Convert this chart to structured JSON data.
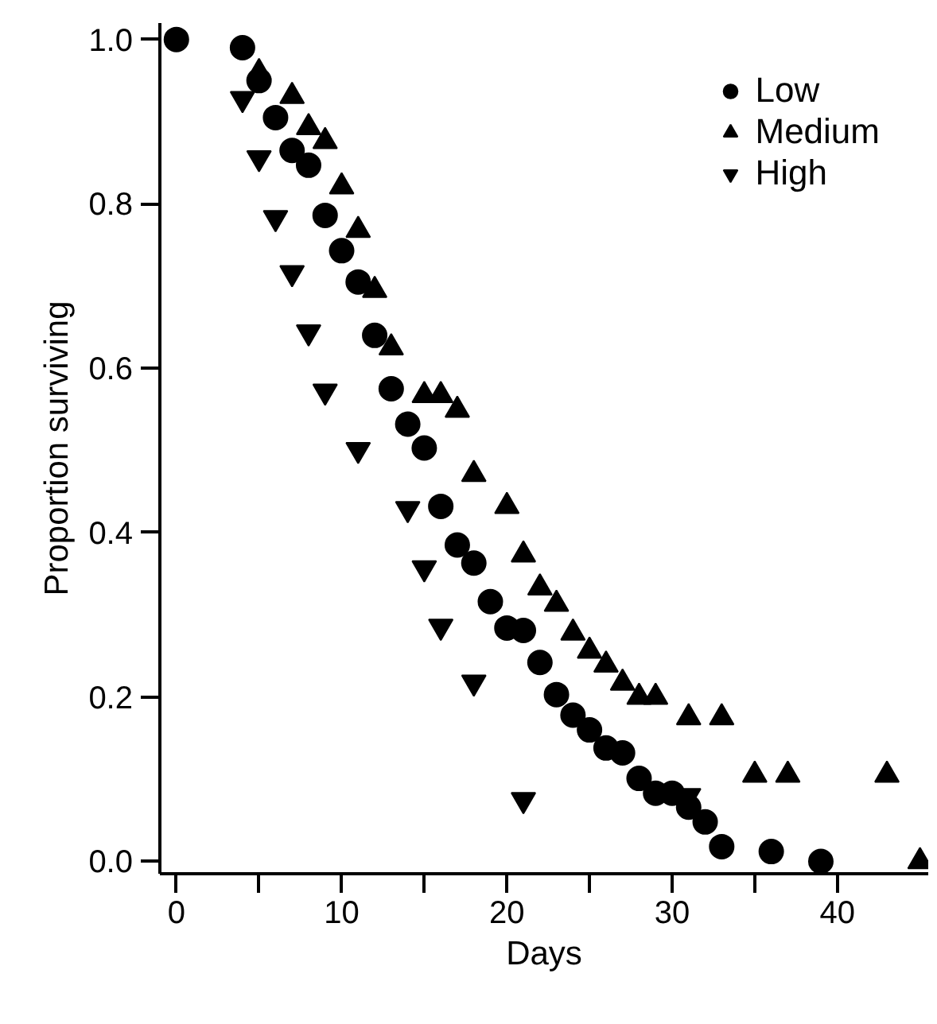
{
  "chart_data": {
    "type": "scatter",
    "xlabel": "Days",
    "ylabel": "Proportion surviving",
    "xlim": [
      -1,
      45.5
    ],
    "ylim": [
      -0.015,
      1.02
    ],
    "xticks": [
      0,
      {
        "value": 5,
        "label": null
      },
      10,
      {
        "value": 15,
        "label": null
      },
      20,
      {
        "value": 25,
        "label": null
      },
      30,
      {
        "value": 35,
        "label": null
      },
      40
    ],
    "yticks": [
      {
        "value": 0,
        "label": "0.0"
      },
      {
        "value": 0.2,
        "label": "0.2"
      },
      {
        "value": 0.4,
        "label": "0.4"
      },
      {
        "value": 0.6,
        "label": "0.6"
      },
      {
        "value": 0.8,
        "label": "0.8"
      },
      {
        "value": 1,
        "label": "1.0"
      }
    ],
    "grid": false,
    "legend": "top right",
    "series": [
      {
        "name": "Low",
        "color": "#000000",
        "marker": "circle",
        "x": [
          0,
          4,
          5,
          6,
          7,
          8,
          9,
          10,
          11,
          12,
          13,
          14,
          15,
          16,
          17,
          18,
          19,
          20,
          21,
          22,
          23,
          24,
          25,
          26,
          27,
          28,
          29,
          30,
          31,
          32,
          33,
          36,
          39
        ],
        "values": [
          1.0,
          0.99,
          0.95,
          0.905,
          0.865,
          0.847,
          0.786,
          0.743,
          0.705,
          0.64,
          0.575,
          0.532,
          0.503,
          0.432,
          0.385,
          0.363,
          0.316,
          0.284,
          0.281,
          0.242,
          0.203,
          0.178,
          0.16,
          0.138,
          0.132,
          0.101,
          0.083,
          0.083,
          0.066,
          0.048,
          0.018,
          0.012,
          0.0
        ]
      },
      {
        "name": "Medium",
        "color": "#000000",
        "marker": "triangle",
        "x": [
          5,
          7,
          8,
          9,
          10,
          11,
          12,
          13,
          15,
          16,
          17,
          18,
          20,
          21,
          22,
          23,
          24,
          25,
          26,
          27,
          28,
          29,
          31,
          33,
          35,
          37,
          43,
          45
        ],
        "values": [
          0.96,
          0.931,
          0.893,
          0.876,
          0.821,
          0.768,
          0.695,
          0.625,
          0.567,
          0.567,
          0.549,
          0.471,
          0.432,
          0.373,
          0.333,
          0.313,
          0.278,
          0.256,
          0.239,
          0.217,
          0.2,
          0.2,
          0.175,
          0.175,
          0.105,
          0.105,
          0.105,
          0.0
        ]
      },
      {
        "name": "High",
        "color": "#000000",
        "marker": "triangle",
        "x": [
          4,
          5,
          6,
          7,
          8,
          9,
          11,
          14,
          15,
          16,
          18,
          21,
          31
        ],
        "values": [
          0.928,
          0.856,
          0.783,
          0.716,
          0.644,
          0.572,
          0.501,
          0.429,
          0.357,
          0.286,
          0.218,
          0.075,
          0.08
        ]
      }
    ]
  }
}
